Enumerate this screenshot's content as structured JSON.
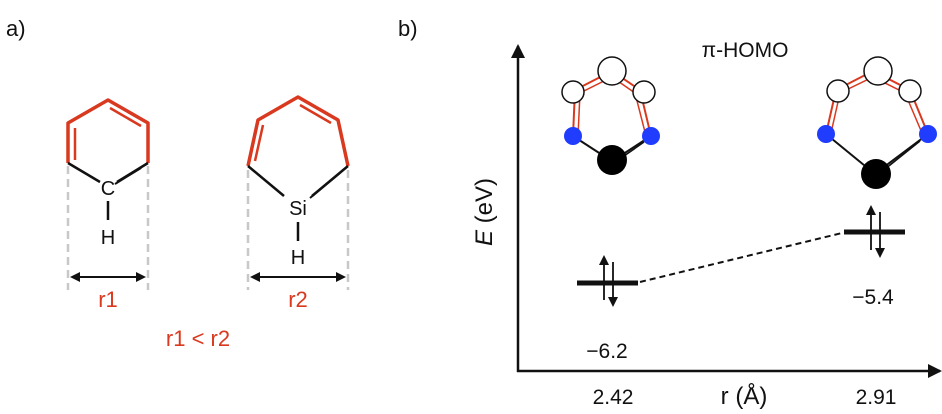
{
  "panel_a": {
    "label": "a)",
    "left_molecule": {
      "atom_c": "C",
      "atom_h": "H",
      "distance_label": "r1"
    },
    "right_molecule": {
      "atom_si": "Si",
      "atom_h": "H",
      "distance_label": "r2"
    },
    "comparison": "r1 < r2"
  },
  "panel_b": {
    "label": "b)",
    "orbital_title": "π-HOMO",
    "y_axis_label_var": "E",
    "y_axis_label_unit": " (eV)",
    "x_axis_label": "r (Å)",
    "x_ticks": [
      "2.42",
      "2.91"
    ],
    "levels": [
      {
        "r": "2.42",
        "energy_label": "−6.2"
      },
      {
        "r": "2.91",
        "energy_label": "−5.4"
      }
    ]
  },
  "colors": {
    "accent_red": "#d9391f",
    "atom_blue": "#1f3cff",
    "atom_black": "#000000",
    "dashed_gray": "#c8c8c8"
  }
}
